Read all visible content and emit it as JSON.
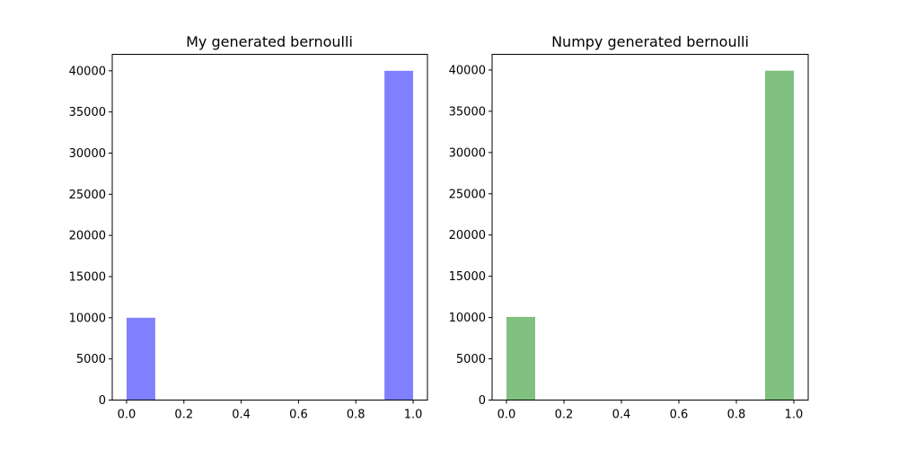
{
  "chart_data": [
    {
      "type": "bar",
      "title": "My generated bernoulli",
      "xlabel": "",
      "ylabel": "",
      "bars": [
        {
          "x0": 0.0,
          "x1": 0.1,
          "value": 10000
        },
        {
          "x0": 0.9,
          "x1": 1.0,
          "value": 40000
        }
      ],
      "xlim": [
        -0.05,
        1.05
      ],
      "ylim": [
        0,
        42000
      ],
      "xticks": [
        0.0,
        0.2,
        0.4,
        0.6,
        0.8,
        1.0
      ],
      "xtick_labels": [
        "0.0",
        "0.2",
        "0.4",
        "0.6",
        "0.8",
        "1.0"
      ],
      "yticks": [
        0,
        5000,
        10000,
        15000,
        20000,
        25000,
        30000,
        35000,
        40000
      ],
      "ytick_labels": [
        "0",
        "5000",
        "10000",
        "15000",
        "20000",
        "25000",
        "30000",
        "35000",
        "40000"
      ],
      "color": "#8080ff",
      "grid": false
    },
    {
      "type": "bar",
      "title": "Numpy generated bernoulli",
      "xlabel": "",
      "ylabel": "",
      "bars": [
        {
          "x0": 0.0,
          "x1": 0.1,
          "value": 10080
        },
        {
          "x0": 0.9,
          "x1": 1.0,
          "value": 39920
        }
      ],
      "xlim": [
        -0.05,
        1.05
      ],
      "ylim": [
        0,
        41900
      ],
      "xticks": [
        0.0,
        0.2,
        0.4,
        0.6,
        0.8,
        1.0
      ],
      "xtick_labels": [
        "0.0",
        "0.2",
        "0.4",
        "0.6",
        "0.8",
        "1.0"
      ],
      "yticks": [
        0,
        5000,
        10000,
        15000,
        20000,
        25000,
        30000,
        35000,
        40000
      ],
      "ytick_labels": [
        "0",
        "5000",
        "10000",
        "15000",
        "20000",
        "25000",
        "30000",
        "35000",
        "40000"
      ],
      "color": "#80c080",
      "grid": false
    }
  ]
}
